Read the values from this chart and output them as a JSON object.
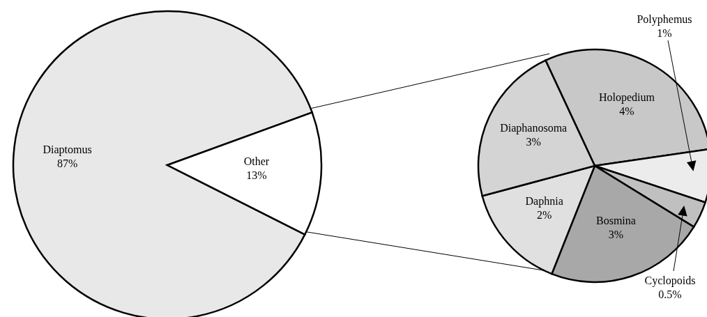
{
  "chart_data": [
    {
      "type": "pie",
      "categories": [
        "Diaptomus",
        "Other"
      ],
      "values": [
        87,
        13
      ],
      "value_labels": [
        "87%",
        "13%"
      ],
      "colors": [
        "#e8e8e8",
        "#ffffff"
      ]
    },
    {
      "type": "pie",
      "categories": [
        "Holopedium",
        "Polyphemus",
        "Cyclopoids",
        "Bosmina",
        "Daphnia",
        "Diaphanosoma"
      ],
      "values": [
        4,
        1,
        0.5,
        3,
        2,
        3
      ],
      "value_labels": [
        "4%",
        "1%",
        "0.5%",
        "3%",
        "2%",
        "3%"
      ],
      "colors": [
        "#c8c8c8",
        "#ececec",
        "#c0c0c0",
        "#a8a8a8",
        "#e0e0e0",
        "#d4d4d4"
      ]
    }
  ]
}
